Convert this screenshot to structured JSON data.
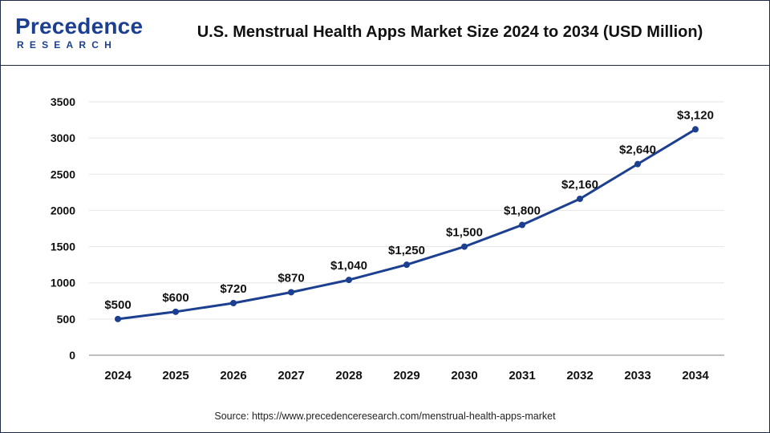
{
  "header": {
    "title": "U.S. Menstrual Health Apps Market Size 2024 to 2034 (USD Million)",
    "logo_main": "recedence",
    "logo_initial": "P",
    "logo_sub": "RESEARCH"
  },
  "footer": {
    "source": "Source: https://www.precedenceresearch.com/menstrual-health-apps-market"
  },
  "colors": {
    "line": "#1c3f8f",
    "brand": "#1c3f8f",
    "grid": "#e6e6e6",
    "axis": "#999999"
  },
  "chart_data": {
    "type": "line",
    "title": "U.S. Menstrual Health Apps Market Size 2024 to 2034 (USD Million)",
    "xlabel": "",
    "ylabel": "",
    "categories": [
      "2024",
      "2025",
      "2026",
      "2027",
      "2028",
      "2029",
      "2030",
      "2031",
      "2032",
      "2033",
      "2034"
    ],
    "series": [
      {
        "name": "Market Size (USD Million)",
        "values": [
          500,
          600,
          720,
          870,
          1040,
          1250,
          1500,
          1800,
          2160,
          2640,
          3120
        ],
        "labels": [
          "$500",
          "$600",
          "$720",
          "$870",
          "$1,040",
          "$1,250",
          "$1,500",
          "$1,800",
          "$2,160",
          "$2,640",
          "$3,120"
        ]
      }
    ],
    "ylim": [
      0,
      3500
    ],
    "yticks": [
      0,
      500,
      1000,
      1500,
      2000,
      2500,
      3000,
      3500
    ],
    "grid": true,
    "legend": "none"
  }
}
